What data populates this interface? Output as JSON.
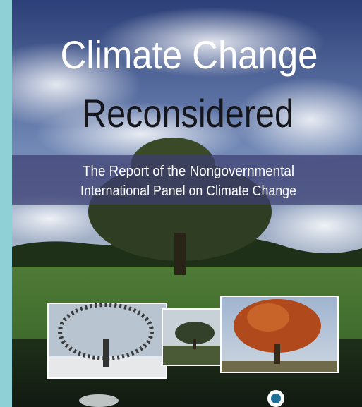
{
  "cover": {
    "title_line1": "Climate Change",
    "title_line2": "Reconsidered",
    "subtitle_line1": "The Report of the Nongovernmental",
    "subtitle_line2": "International Panel on Climate Change"
  }
}
